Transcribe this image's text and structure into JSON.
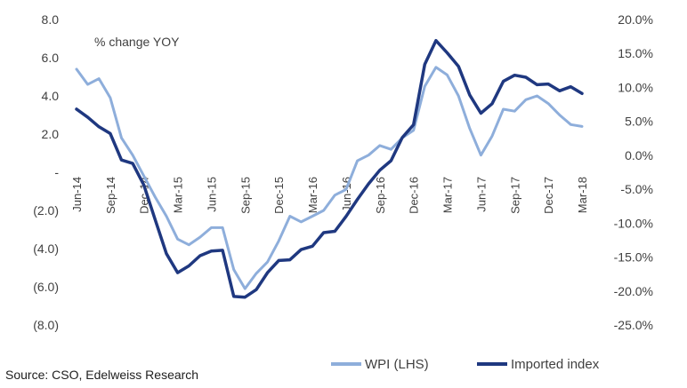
{
  "chart_data": {
    "type": "line",
    "annotation": "% change YOY",
    "source": "Source:  CSO, Edelweiss Research",
    "left_axis": {
      "min": -8,
      "max": 8,
      "step": 2,
      "tick_labels": [
        "(8.0)",
        "(6.0)",
        "(4.0)",
        "(2.0)",
        "-",
        "2.0",
        "4.0",
        "6.0",
        "8.0"
      ]
    },
    "right_axis": {
      "min": -25,
      "max": 20,
      "step": 5,
      "tick_labels": [
        "-25.0%",
        "-20.0%",
        "-15.0%",
        "-10.0%",
        "-5.0%",
        "0.0%",
        "5.0%",
        "10.0%",
        "15.0%",
        "20.0%"
      ]
    },
    "x_labels": [
      "Jun-14",
      "Sep-14",
      "Dec-14",
      "Mar-15",
      "Jun-15",
      "Sep-15",
      "Dec-15",
      "Mar-16",
      "Jun-16",
      "Sep-16",
      "Dec-16",
      "Mar-17",
      "Jun-17",
      "Sep-17",
      "Dec-17",
      "Mar-18"
    ],
    "x_months": [
      "Jun-14",
      "Jul-14",
      "Aug-14",
      "Sep-14",
      "Oct-14",
      "Nov-14",
      "Dec-14",
      "Jan-15",
      "Feb-15",
      "Mar-15",
      "Apr-15",
      "May-15",
      "Jun-15",
      "Jul-15",
      "Aug-15",
      "Sep-15",
      "Oct-15",
      "Nov-15",
      "Dec-15",
      "Jan-16",
      "Feb-16",
      "Mar-16",
      "Apr-16",
      "May-16",
      "Jun-16",
      "Jul-16",
      "Aug-16",
      "Sep-16",
      "Oct-16",
      "Nov-16",
      "Dec-16",
      "Jan-17",
      "Feb-17",
      "Mar-17",
      "Apr-17",
      "May-17",
      "Jun-17",
      "Jul-17",
      "Aug-17",
      "Sep-17",
      "Oct-17",
      "Nov-17",
      "Dec-17",
      "Jan-18",
      "Feb-18",
      "Mar-18"
    ],
    "grid": false,
    "legend_position": "bottom",
    "series": [
      {
        "name": "WPI (LHS)",
        "axis": "left",
        "color": "#8eaedb",
        "values": [
          5.4,
          4.6,
          4.9,
          3.9,
          1.8,
          0.9,
          -0.2,
          -1.3,
          -2.3,
          -3.5,
          -3.8,
          -3.4,
          -2.9,
          -2.9,
          -5.1,
          -6.1,
          -5.3,
          -4.7,
          -3.6,
          -2.3,
          -2.6,
          -2.3,
          -2.0,
          -1.2,
          -0.9,
          0.6,
          0.9,
          1.4,
          1.2,
          1.8,
          2.2,
          4.5,
          5.5,
          5.1,
          4.0,
          2.3,
          0.9,
          1.9,
          3.3,
          3.2,
          3.8,
          4.0,
          3.6,
          3.0,
          2.5,
          2.4
        ]
      },
      {
        "name": "Imported index",
        "axis": "right",
        "color": "#1f3880",
        "values": [
          6.8,
          5.6,
          4.2,
          3.2,
          -0.7,
          -1.2,
          -4.4,
          -9.5,
          -14.5,
          -17.3,
          -16.3,
          -14.8,
          -14.1,
          -14.0,
          -20.8,
          -20.9,
          -19.8,
          -17.3,
          -15.5,
          -15.4,
          -13.9,
          -13.4,
          -11.4,
          -11.2,
          -9.0,
          -6.5,
          -4.2,
          -2.2,
          -0.8,
          2.6,
          4.5,
          13.4,
          16.9,
          15.1,
          13.1,
          8.9,
          6.2,
          7.6,
          10.9,
          11.8,
          11.5,
          10.4,
          10.5,
          9.5,
          10.1,
          9.1
        ]
      }
    ]
  }
}
